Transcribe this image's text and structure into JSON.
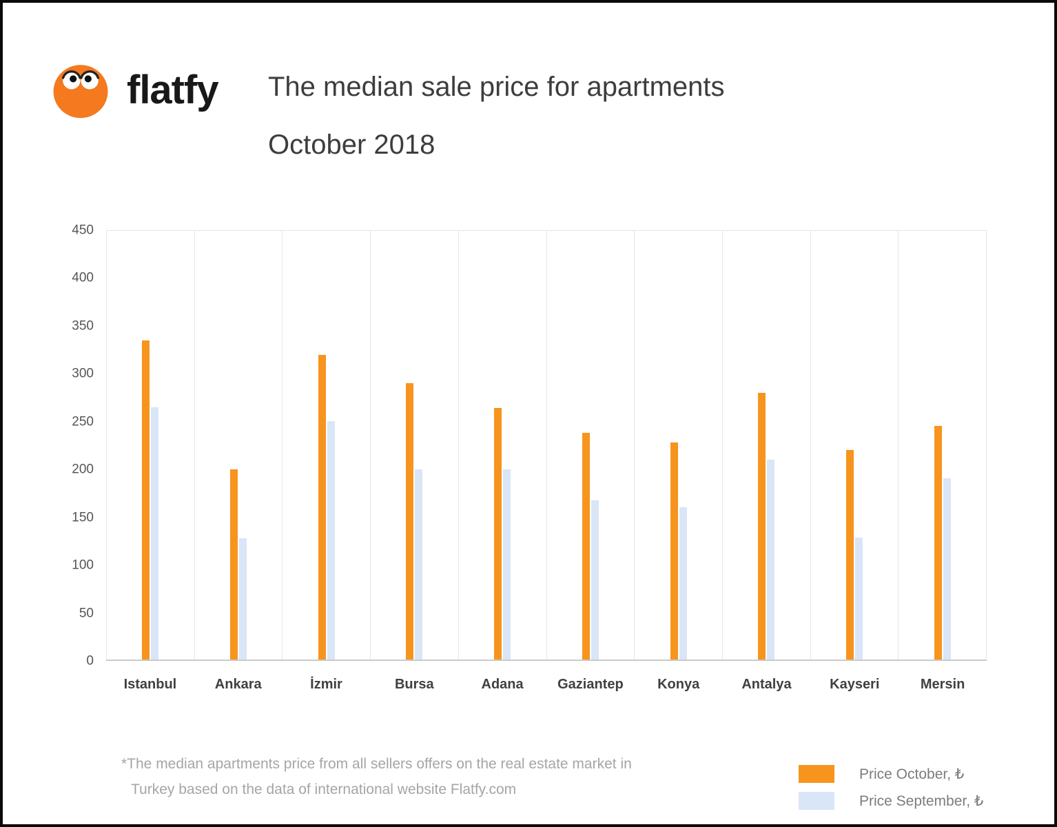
{
  "header": {
    "logo_text": "flatfy",
    "logo_color": "#F4791F",
    "title_line1": "The median sale price for apartments",
    "title_line2": "October 2018"
  },
  "chart_data": {
    "type": "bar",
    "title": "The median sale price for apartments October 2018",
    "categories": [
      "Istanbul",
      "Ankara",
      "İzmir",
      "Bursa",
      "Adana",
      "Gaziantep",
      "Konya",
      "Antalya",
      "Kayseri",
      "Mersin"
    ],
    "series": [
      {
        "name": "Price October, ₺",
        "color": "#F7941E",
        "values": [
          335,
          200,
          320,
          290,
          264,
          238,
          228,
          280,
          220,
          245
        ]
      },
      {
        "name": "Price September, ₺",
        "color": "#D9E6F7",
        "values": [
          265,
          127,
          250,
          200,
          200,
          167,
          160,
          210,
          128,
          190
        ]
      }
    ],
    "xlabel": "",
    "ylabel": "",
    "ylim": [
      0,
      450
    ],
    "yticks": [
      0,
      50,
      100,
      150,
      200,
      250,
      300,
      350,
      400,
      450
    ],
    "grid": "vertical",
    "legend_position": "bottom-right"
  },
  "legend": {
    "items": [
      {
        "label": "Price October, ₺",
        "color": "#F7941E"
      },
      {
        "label": "Price September, ₺",
        "color": "#D9E6F7"
      }
    ]
  },
  "footnote": {
    "line1": "*The median apartments price from all sellers offers on the real estate market in",
    "line2": "Turkey based on the data of international website Flatfy.com"
  }
}
